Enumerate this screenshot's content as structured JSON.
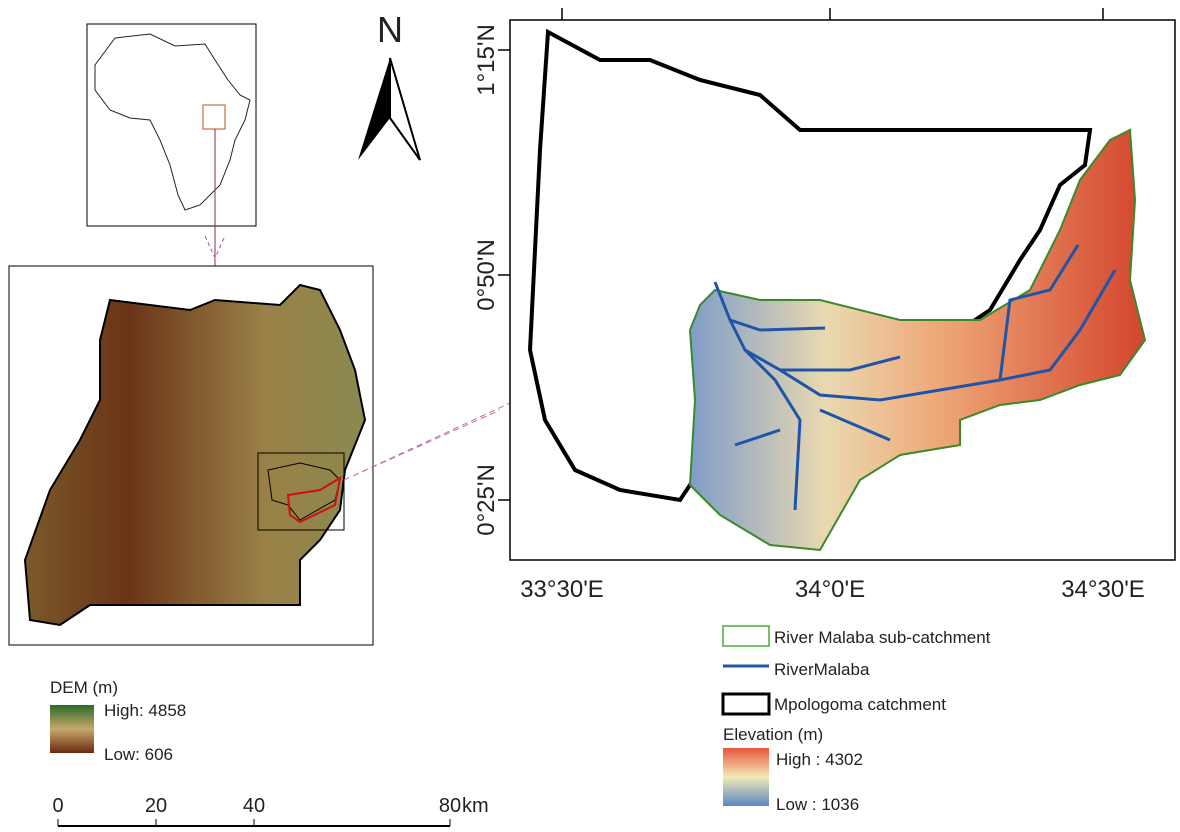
{
  "north": "N",
  "main_map": {
    "lat_labels": [
      "1°15'N",
      "0°50'N",
      "0°25'N"
    ],
    "lon_labels": [
      "33°30'E",
      "34°0'E",
      "34°30'E"
    ]
  },
  "legend": {
    "items": [
      "River Malaba sub-catchment",
      "RiverMalaba",
      "Mpologoma catchment"
    ],
    "elevation_title": "Elevation (m)",
    "elevation_high": "High : 4302",
    "elevation_low": "Low : 1036"
  },
  "dem_legend": {
    "title": "DEM (m)",
    "high": "High: 4858",
    "low": "Low: 606"
  },
  "scale_bar": {
    "ticks": [
      0,
      20,
      40,
      80
    ],
    "unit": "km"
  }
}
